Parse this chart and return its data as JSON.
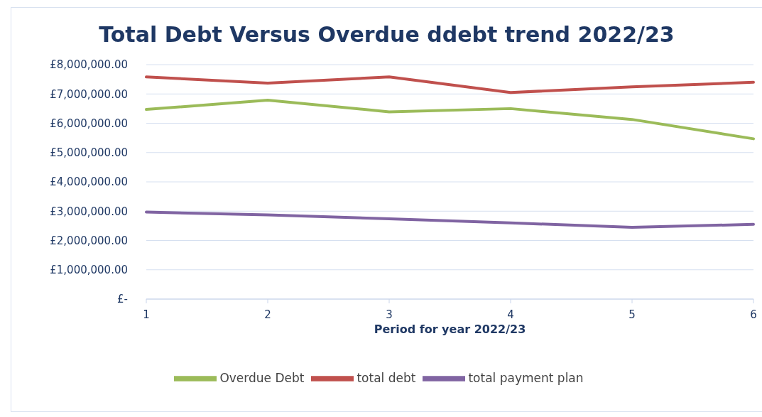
{
  "chart_data": {
    "type": "line",
    "title": "Total Debt Versus Overdue ddebt trend 2022/23",
    "xlabel": "Period for year 2022/23",
    "categories": [
      "1",
      "2",
      "3",
      "4",
      "5",
      "6"
    ],
    "series": [
      {
        "name": "total debt",
        "color": "#c0504d",
        "values": [
          7580000,
          7370000,
          7580000,
          7050000,
          7240000,
          7400000
        ]
      },
      {
        "name": "Overdue Debt",
        "color": "#9bbb59",
        "values": [
          6470000,
          6790000,
          6390000,
          6500000,
          6130000,
          5470000
        ]
      },
      {
        "name": "total payment plan",
        "color": "#8064a2",
        "values": [
          2970000,
          2870000,
          2740000,
          2600000,
          2450000,
          2550000
        ]
      }
    ],
    "ylim": [
      0,
      8000000
    ],
    "yticks": [
      {
        "value": 0,
        "label": "£-"
      },
      {
        "value": 1000000,
        "label": "£1,000,000.00"
      },
      {
        "value": 2000000,
        "label": "£2,000,000.00"
      },
      {
        "value": 3000000,
        "label": "£3,000,000.00"
      },
      {
        "value": 4000000,
        "label": "£4,000,000.00"
      },
      {
        "value": 5000000,
        "label": "£5,000,000.00"
      },
      {
        "value": 6000000,
        "label": "£6,000,000.00"
      },
      {
        "value": 7000000,
        "label": "£7,000,000.00"
      },
      {
        "value": 8000000,
        "label": "£8,000,000.00"
      }
    ],
    "grid": "y",
    "legend": "bottom",
    "marker": "none",
    "line_style": "solid"
  }
}
